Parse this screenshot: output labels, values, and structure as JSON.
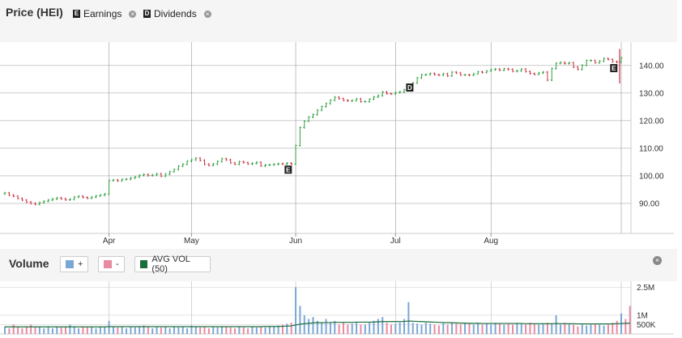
{
  "header": {
    "title": "Price (HEI)",
    "earnings": {
      "badge": "E",
      "label": "Earnings"
    },
    "dividends": {
      "badge": "D",
      "label": "Dividends"
    },
    "close_glyph": "×"
  },
  "volume_header": {
    "title": "Volume",
    "up_label": "+",
    "down_label": "-",
    "avg_label": "AVG VOL (50)",
    "close_glyph": "×"
  },
  "colors": {
    "up": "#2e9e3e",
    "down": "#cc3344",
    "vol_up": "#7aa7d6",
    "vol_down": "#e88aa0",
    "avg": "#1a6e3a",
    "grid": "#999999"
  },
  "chart_data": [
    {
      "type": "ohlc",
      "title": "Price (HEI)",
      "xlabel": "",
      "ylabel": "",
      "x_tick_labels": [
        "Apr",
        "May",
        "Jun",
        "Jul",
        "Aug"
      ],
      "y_ticks": [
        90,
        100,
        110,
        120,
        130,
        140
      ],
      "y_tick_labels": [
        "90.00",
        "100.00",
        "110.00",
        "120.00",
        "130.00",
        "140.00"
      ],
      "ylim": [
        80,
        147
      ],
      "grid": true,
      "closes": [
        93.8,
        93.0,
        92.6,
        91.8,
        91.2,
        90.5,
        90.0,
        89.7,
        90.3,
        90.8,
        91.2,
        91.6,
        92.0,
        91.7,
        91.3,
        91.5,
        92.3,
        92.6,
        92.2,
        91.9,
        92.3,
        92.7,
        93.0,
        93.4,
        98.3,
        98.5,
        98.2,
        98.7,
        98.8,
        99.2,
        99.6,
        100.2,
        100.5,
        100.1,
        100.3,
        100.7,
        99.9,
        100.6,
        101.5,
        102.3,
        103.5,
        104.2,
        105.3,
        105.8,
        106.4,
        105.6,
        104.2,
        103.8,
        104.3,
        105.2,
        106.2,
        105.8,
        104.7,
        104.2,
        105.1,
        104.8,
        104.3,
        104.5,
        104.9,
        103.6,
        103.9,
        104.0,
        104.2,
        104.4,
        104.3,
        104.6,
        104.3,
        111.0,
        117.5,
        119.8,
        121.3,
        122.2,
        123.8,
        125.1,
        126.2,
        127.4,
        128.5,
        128.0,
        127.4,
        127.2,
        127.3,
        127.9,
        126.9,
        126.9,
        127.8,
        128.6,
        129.1,
        130.4,
        129.8,
        129.7,
        130.2,
        130.4,
        131.2,
        132.6,
        133.7,
        135.5,
        136.6,
        136.7,
        137.1,
        136.7,
        136.5,
        137.0,
        136.2,
        137.6,
        137.3,
        136.6,
        136.6,
        136.5,
        137.0,
        137.7,
        137.5,
        138.0,
        138.5,
        138.7,
        138.3,
        138.8,
        138.6,
        137.9,
        138.1,
        138.7,
        137.8,
        137.1,
        136.8,
        137.3,
        137.6,
        134.7,
        138.9,
        140.8,
        141.1,
        140.7,
        141.0,
        139.4,
        138.6,
        140.1,
        141.8,
        141.8,
        141.0,
        141.6,
        142.5,
        142.2,
        141.4,
        141.2,
        142.8
      ],
      "events": [
        {
          "type": "earnings",
          "label": "E",
          "index": 65
        },
        {
          "type": "dividend",
          "label": "D",
          "index": 93
        },
        {
          "type": "earnings",
          "label": "E",
          "index": 140
        }
      ]
    },
    {
      "type": "bar",
      "title": "Volume",
      "legend": [
        "+",
        "-",
        "AVG VOL (50)"
      ],
      "y_tick_labels": [
        "500K",
        "1M",
        "2.5M"
      ],
      "y_ticks": [
        0.5,
        1.0,
        2.5
      ],
      "ylim": [
        0,
        2.6
      ],
      "unit": "M",
      "volumes": [
        0.4,
        0.3,
        0.5,
        0.4,
        0.3,
        0.4,
        0.5,
        0.4,
        0.4,
        0.3,
        0.4,
        0.3,
        0.4,
        0.35,
        0.4,
        0.5,
        0.4,
        0.3,
        0.4,
        0.35,
        0.4,
        0.3,
        0.4,
        0.35,
        0.7,
        0.4,
        0.35,
        0.4,
        0.3,
        0.4,
        0.35,
        0.4,
        0.45,
        0.4,
        0.3,
        0.4,
        0.35,
        0.4,
        0.3,
        0.4,
        0.35,
        0.4,
        0.3,
        0.45,
        0.4,
        0.35,
        0.4,
        0.3,
        0.4,
        0.35,
        0.4,
        0.4,
        0.35,
        0.3,
        0.4,
        0.35,
        0.3,
        0.4,
        0.35,
        0.4,
        0.35,
        0.4,
        0.4,
        0.45,
        0.5,
        0.55,
        0.6,
        2.5,
        1.5,
        1.0,
        0.8,
        0.9,
        0.7,
        0.6,
        0.8,
        0.6,
        0.7,
        0.5,
        0.6,
        0.5,
        0.55,
        0.6,
        0.5,
        0.5,
        0.6,
        0.7,
        0.8,
        0.9,
        0.6,
        0.5,
        0.55,
        0.6,
        0.8,
        1.7,
        0.6,
        0.55,
        0.5,
        0.6,
        0.55,
        0.5,
        0.45,
        0.6,
        0.5,
        0.6,
        0.55,
        0.5,
        0.6,
        0.55,
        0.5,
        0.6,
        0.5,
        0.55,
        0.5,
        0.6,
        0.55,
        0.5,
        0.55,
        0.5,
        0.6,
        0.55,
        0.5,
        0.6,
        0.55,
        0.5,
        0.55,
        0.6,
        0.55,
        1.0,
        0.5,
        0.6,
        0.55,
        0.5,
        0.4,
        0.5,
        0.45,
        0.5,
        0.55,
        0.5,
        0.45,
        0.5,
        0.6,
        0.7,
        1.1,
        0.8,
        1.5
      ],
      "avg_volume": [
        0.38,
        0.38,
        0.38,
        0.38,
        0.38,
        0.38,
        0.38,
        0.38,
        0.38,
        0.38,
        0.38,
        0.38,
        0.38,
        0.38,
        0.38,
        0.38,
        0.38,
        0.38,
        0.38,
        0.38,
        0.38,
        0.38,
        0.38,
        0.38,
        0.39,
        0.39,
        0.39,
        0.39,
        0.39,
        0.39,
        0.39,
        0.39,
        0.39,
        0.39,
        0.39,
        0.39,
        0.39,
        0.39,
        0.39,
        0.39,
        0.39,
        0.39,
        0.39,
        0.39,
        0.39,
        0.39,
        0.39,
        0.39,
        0.39,
        0.39,
        0.39,
        0.39,
        0.39,
        0.39,
        0.39,
        0.39,
        0.39,
        0.39,
        0.39,
        0.39,
        0.4,
        0.4,
        0.4,
        0.4,
        0.41,
        0.42,
        0.43,
        0.48,
        0.52,
        0.55,
        0.57,
        0.59,
        0.6,
        0.6,
        0.61,
        0.61,
        0.62,
        0.62,
        0.62,
        0.62,
        0.62,
        0.63,
        0.63,
        0.63,
        0.63,
        0.64,
        0.65,
        0.66,
        0.66,
        0.66,
        0.66,
        0.66,
        0.67,
        0.69,
        0.68,
        0.67,
        0.66,
        0.65,
        0.64,
        0.63,
        0.62,
        0.61,
        0.6,
        0.6,
        0.59,
        0.58,
        0.58,
        0.57,
        0.57,
        0.57,
        0.56,
        0.56,
        0.56,
        0.56,
        0.56,
        0.56,
        0.56,
        0.56,
        0.56,
        0.56,
        0.55,
        0.55,
        0.55,
        0.55,
        0.55,
        0.55,
        0.55,
        0.56,
        0.55,
        0.55,
        0.55,
        0.55,
        0.54,
        0.54,
        0.54,
        0.54,
        0.54,
        0.54,
        0.54,
        0.54,
        0.54,
        0.55,
        0.56,
        0.57,
        0.58
      ]
    }
  ]
}
